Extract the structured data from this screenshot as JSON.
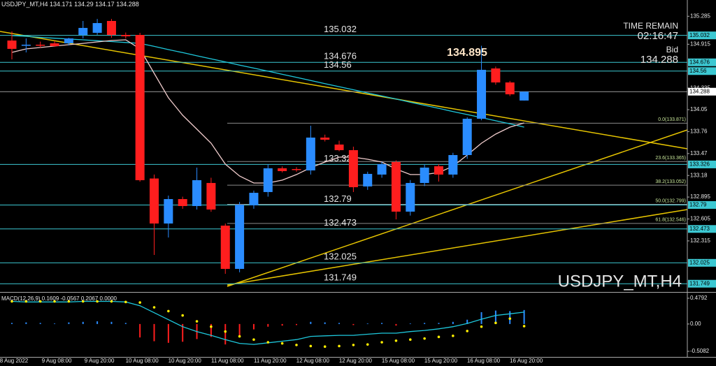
{
  "chart_data": [
    {
      "type": "candlestick",
      "symbol": "USDJPY_MT,H4",
      "categories": [
        "8 Aug 2022",
        null,
        null,
        "9 Aug 08:00",
        null,
        null,
        "9 Aug 20:00",
        null,
        null,
        "10 Aug 08:00",
        null,
        null,
        "10 Aug 20:00",
        null,
        null,
        "11 Aug 08:00",
        null,
        null,
        "11 Aug 20:00",
        null,
        null,
        "12 Aug 08:00",
        null,
        null,
        "12 Aug 20:00",
        null,
        null,
        "15 Aug 08:00",
        null,
        null,
        "15 Aug 20:00",
        null,
        null,
        "16 Aug 08:00",
        null,
        null,
        "16 Aug 20:00"
      ],
      "candles": [
        {
          "o": 134.964,
          "h": 135.084,
          "l": 134.715,
          "c": 134.854
        },
        {
          "o": 134.9,
          "h": 134.992,
          "l": 134.807,
          "c": 134.909
        },
        {
          "o": 134.909,
          "h": 134.95,
          "l": 134.87,
          "c": 134.9
        },
        {
          "o": 134.927,
          "h": 134.96,
          "l": 134.88,
          "c": 134.89
        },
        {
          "o": 134.927,
          "h": 135.0,
          "l": 134.9,
          "c": 134.992
        },
        {
          "o": 135.038,
          "h": 135.223,
          "l": 134.992,
          "c": 135.131
        },
        {
          "o": 135.066,
          "h": 135.25,
          "l": 135.04,
          "c": 135.195
        },
        {
          "o": 135.223,
          "h": 135.25,
          "l": 135.0,
          "c": 135.038
        },
        {
          "o": 135.038,
          "h": 135.07,
          "l": 134.99,
          "c": 135.02
        },
        {
          "o": 135.038,
          "h": 135.066,
          "l": 133.099,
          "c": 133.118
        },
        {
          "o": 133.14,
          "h": 133.192,
          "l": 132.13,
          "c": 132.545
        },
        {
          "o": 132.545,
          "h": 132.914,
          "l": 132.36,
          "c": 132.868
        },
        {
          "o": 132.868,
          "h": 132.9,
          "l": 132.74,
          "c": 132.776
        },
        {
          "o": 132.776,
          "h": 133.284,
          "l": 132.73,
          "c": 133.118
        },
        {
          "o": 133.081,
          "h": 133.15,
          "l": 132.7,
          "c": 132.73
        },
        {
          "o": 132.517,
          "h": 132.545,
          "l": 131.88,
          "c": 131.945
        },
        {
          "o": 131.945,
          "h": 132.83,
          "l": 131.9,
          "c": 132.794
        },
        {
          "o": 132.785,
          "h": 132.98,
          "l": 132.74,
          "c": 132.951
        },
        {
          "o": 132.961,
          "h": 133.33,
          "l": 132.9,
          "c": 133.275
        },
        {
          "o": 133.275,
          "h": 133.3,
          "l": 133.22,
          "c": 133.238
        },
        {
          "o": 133.265,
          "h": 133.29,
          "l": 133.23,
          "c": 133.256
        },
        {
          "o": 133.247,
          "h": 133.838,
          "l": 133.192,
          "c": 133.681
        },
        {
          "o": 133.681,
          "h": 133.72,
          "l": 133.63,
          "c": 133.653
        },
        {
          "o": 133.589,
          "h": 133.64,
          "l": 133.5,
          "c": 133.515
        },
        {
          "o": 133.515,
          "h": 133.561,
          "l": 132.961,
          "c": 133.025
        },
        {
          "o": 133.035,
          "h": 133.23,
          "l": 132.99,
          "c": 133.201
        },
        {
          "o": 133.192,
          "h": 133.36,
          "l": 133.15,
          "c": 133.33
        },
        {
          "o": 133.358,
          "h": 133.38,
          "l": 132.6,
          "c": 132.702
        },
        {
          "o": 132.702,
          "h": 133.12,
          "l": 132.65,
          "c": 133.081
        },
        {
          "o": 133.081,
          "h": 133.33,
          "l": 133.04,
          "c": 133.284
        },
        {
          "o": 133.302,
          "h": 133.33,
          "l": 133.1,
          "c": 133.192
        },
        {
          "o": 133.192,
          "h": 133.48,
          "l": 133.15,
          "c": 133.45
        },
        {
          "o": 133.45,
          "h": 133.95,
          "l": 133.4,
          "c": 133.93
        },
        {
          "o": 133.93,
          "h": 134.895,
          "l": 133.91,
          "c": 134.577
        },
        {
          "o": 134.595,
          "h": 134.62,
          "l": 134.38,
          "c": 134.41
        },
        {
          "o": 134.41,
          "h": 134.43,
          "l": 134.23,
          "c": 134.253
        },
        {
          "o": 134.171,
          "h": 134.29,
          "l": 134.17,
          "c": 134.288
        }
      ],
      "up_color": "#2a8cff",
      "down_color": "#ff1e1e",
      "ylim": [
        131.64,
        135.5
      ],
      "yticks": [
        135.285,
        134.915,
        134.335,
        134.05,
        133.76,
        133.47,
        133.18,
        132.895,
        132.605,
        132.315
      ],
      "overlays": [
        {
          "color": "#1ec8dc",
          "values": [
            135.029,
            135.02,
            135.006,
            134.995,
            134.984,
            134.974,
            134.962,
            134.951,
            134.939,
            134.927,
            134.887,
            134.844,
            134.805,
            134.762,
            134.722,
            134.682,
            134.639,
            134.6,
            134.559,
            134.517,
            134.477,
            134.436,
            134.394,
            134.354,
            134.313,
            134.271,
            134.231,
            134.191,
            134.148,
            134.108,
            134.068,
            134.025,
            133.986,
            133.945,
            133.903,
            133.863,
            133.819
          ]
        },
        {
          "color": "#f0cccc",
          "values": [
            134.807,
            134.854,
            134.872,
            134.891,
            134.909,
            134.927,
            134.946,
            134.964,
            134.974,
            134.854,
            134.53,
            134.207,
            133.976,
            133.792,
            133.607,
            133.33,
            133.173,
            133.081,
            133.081,
            133.118,
            133.192,
            133.284,
            133.358,
            133.422,
            133.422,
            133.395,
            133.358,
            133.265,
            133.192,
            133.192,
            133.219,
            133.302,
            133.45,
            133.607,
            133.727,
            133.819,
            133.875
          ]
        }
      ],
      "levels": [
        135.032,
        134.676,
        134.56,
        133.326,
        132.79,
        132.473,
        132.025,
        131.749
      ],
      "level_color": "#3cc8d2",
      "fib_levels": [
        {
          "label": "0.0(133.871)",
          "value": 133.871
        },
        {
          "label": "23.6(133.365)",
          "value": 133.365
        },
        {
          "label": "38.2(133.052)",
          "value": 133.052
        },
        {
          "label": "50.0(132.799)",
          "value": 132.799
        },
        {
          "label": "61.8(132.546)",
          "value": 132.546
        }
      ],
      "fib_color": "#8a8a8a",
      "bid": 134.288,
      "time_remain_label": "TIME REMAIN",
      "time_remain": "02:16:47",
      "bid_label": "Bid"
    },
    {
      "type": "macd",
      "title": "MACD(12,26,9) 0.1609 -0.0567 0.2067 0.0000",
      "ylim": [
        -0.625,
        0.596
      ],
      "yticks": [
        0.4792,
        {
          "value": 0,
          "label": "0.00"
        },
        -0.5082
      ],
      "up_color": "#2a8cff",
      "down_color": "#ff1e1e",
      "histogram": [
        0.02,
        0.03,
        0.02,
        0.01,
        0.03,
        0.04,
        0.05,
        0.04,
        0.02,
        -0.25,
        -0.32,
        -0.35,
        -0.33,
        -0.28,
        -0.24,
        -0.38,
        -0.22,
        -0.1,
        -0.05,
        -0.03,
        -0.02,
        0.04,
        0.03,
        0.02,
        -0.02,
        0.01,
        0.02,
        -0.03,
        0.01,
        0.02,
        0.02,
        0.04,
        0.08,
        0.22,
        0.25,
        0.24,
        0.26
      ],
      "line": {
        "color": "#1ec8dc",
        "values": [
          0.42,
          0.41,
          0.41,
          0.41,
          0.41,
          0.42,
          0.42,
          0.42,
          0.41,
          0.34,
          0.21,
          0.08,
          -0.05,
          -0.14,
          -0.21,
          -0.29,
          -0.36,
          -0.38,
          -0.35,
          -0.32,
          -0.29,
          -0.23,
          -0.22,
          -0.21,
          -0.21,
          -0.19,
          -0.17,
          -0.17,
          -0.14,
          -0.12,
          -0.09,
          -0.05,
          0.01,
          0.09,
          0.16,
          0.19,
          0.22
        ]
      },
      "signal": {
        "color": "#ffee00",
        "values": [
          0.42,
          0.42,
          0.42,
          0.42,
          0.42,
          0.42,
          0.42,
          0.42,
          0.41,
          0.4,
          0.31,
          0.24,
          0.16,
          0.05,
          -0.05,
          -0.14,
          -0.23,
          -0.29,
          -0.34,
          -0.36,
          -0.39,
          -0.41,
          -0.42,
          -0.41,
          -0.39,
          -0.38,
          -0.34,
          -0.31,
          -0.29,
          -0.27,
          -0.24,
          -0.22,
          -0.13,
          -0.05,
          0.02,
          0.1,
          -0.04
        ]
      }
    }
  ]
}
